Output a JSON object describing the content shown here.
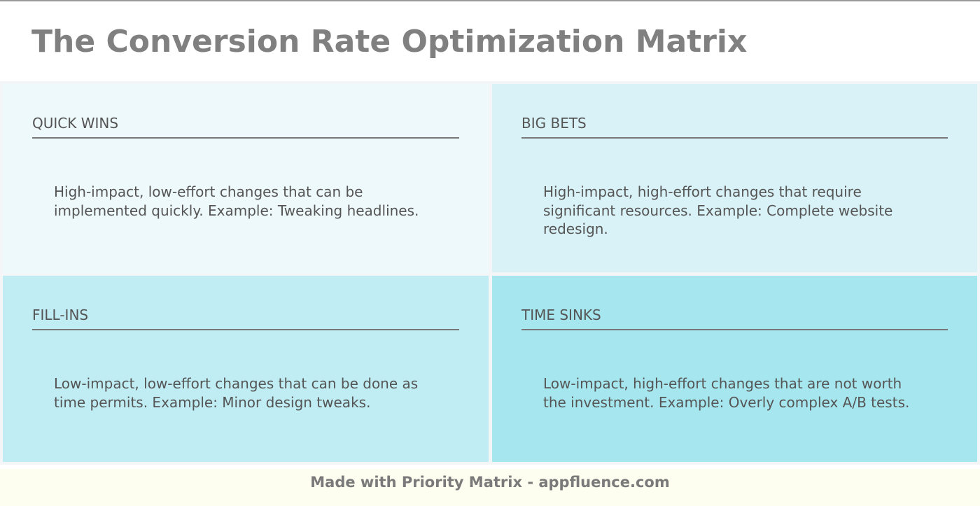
{
  "title": "The Conversion Rate Optimization Matrix",
  "quadrants": [
    {
      "heading": "QUICK WINS",
      "description": "High-impact, low-effort changes that can be implemented quickly. Example: Tweaking headlines.",
      "color": "#eef9fb"
    },
    {
      "heading": "BIG BETS",
      "description": "High-impact, high-effort changes that require significant resources. Example: Complete website redesign.",
      "color": "#d9f2f7"
    },
    {
      "heading": "FILL-INS",
      "description": "Low-impact, low-effort changes that can be done as time permits. Example: Minor design tweaks.",
      "color": "#bfedf3"
    },
    {
      "heading": "TIME SINKS",
      "description": "Low-impact, high-effort changes that are not worth the investment. Example: Overly complex A/B tests.",
      "color": "#a6e7ef"
    }
  ],
  "footer": "Made with Priority Matrix - appfluence.com"
}
